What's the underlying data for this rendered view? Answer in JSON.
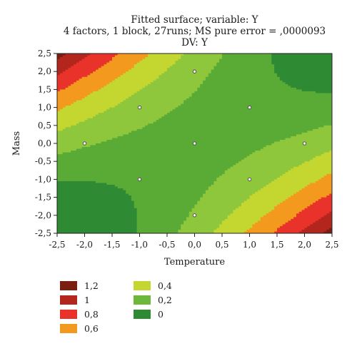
{
  "title": {
    "line1": "Fitted surface; variable: Y",
    "line2": "4 factors, 1 block, 27runs; MS pure error = ,0000093",
    "line3": "DV: Y"
  },
  "chart_data": {
    "type": "contour",
    "xlabel": "Temperature",
    "ylabel": "Mass",
    "xlim": [
      -2.5,
      2.5
    ],
    "ylim": [
      -2.5,
      2.5
    ],
    "xticks": [
      "-2,5",
      "-2,0",
      "-1,5",
      "-1,0",
      "-0,5",
      "0,0",
      "0,5",
      "1,0",
      "1,5",
      "2,0",
      "2,5"
    ],
    "yticks": [
      "2,5",
      "2,0",
      "1,5",
      "1,0",
      "0,5",
      "0,0",
      "-0,5",
      "-1,0",
      "-1,5",
      "-2,0",
      "-2,5"
    ],
    "design_points": [
      {
        "x": -2,
        "y": 0
      },
      {
        "x": 2,
        "y": 0
      },
      {
        "x": 0,
        "y": 2
      },
      {
        "x": 0,
        "y": -2
      },
      {
        "x": -1,
        "y": 1
      },
      {
        "x": 1,
        "y": 1
      },
      {
        "x": -1,
        "y": -1
      },
      {
        "x": 1,
        "y": -1
      },
      {
        "x": 0,
        "y": 0
      }
    ],
    "legend": [
      {
        "label": "1,2",
        "color": "#7a1e12"
      },
      {
        "label": "1",
        "color": "#b3261e"
      },
      {
        "label": "0,8",
        "color": "#e8322a"
      },
      {
        "label": "0,6",
        "color": "#f39a1e"
      },
      {
        "label": "0,4",
        "color": "#c4d630"
      },
      {
        "label": "0,2",
        "color": "#6cb83a"
      },
      {
        "label": "0",
        "color": "#2e8b34"
      }
    ],
    "levels": [
      0,
      0.2,
      0.4,
      0.6,
      0.8,
      1,
      1.2
    ],
    "level_colors": [
      "#2e8b34",
      "#5aaa36",
      "#8ec63c",
      "#c4d630",
      "#f39a1e",
      "#e8322a",
      "#b3261e",
      "#7a1e12"
    ]
  }
}
